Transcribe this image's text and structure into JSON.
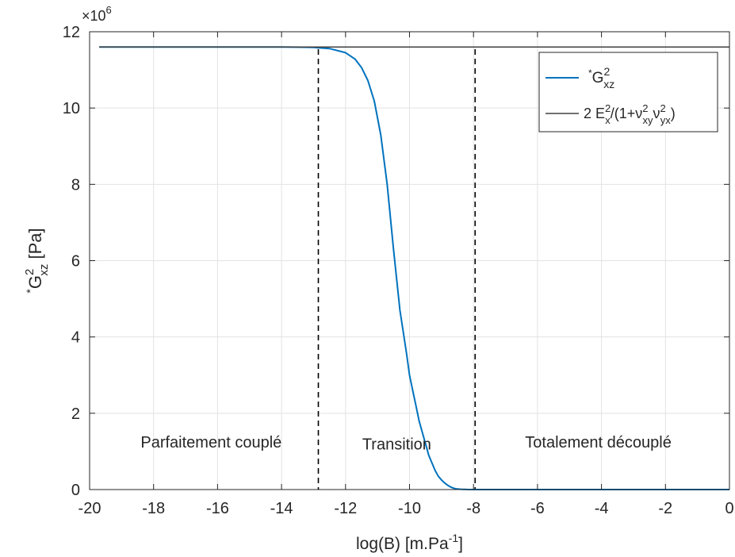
{
  "chart_data": {
    "type": "line",
    "title": "",
    "xlabel": {
      "base": "log(B) [m.Pa",
      "sup": "-1",
      "tail": "]"
    },
    "ylabel": {
      "pre": "*",
      "main": "G",
      "sup": "2",
      "sub": "xz",
      "tail": " [Pa]"
    },
    "exponent_label": {
      "base": "×10",
      "sup": "6"
    },
    "xlim": [
      -20,
      0
    ],
    "ylim": [
      0,
      12000000
    ],
    "xticks": [
      -20,
      -18,
      -16,
      -14,
      -12,
      -10,
      -8,
      -6,
      -4,
      -2,
      0
    ],
    "yticks": [
      0,
      2000000,
      4000000,
      6000000,
      8000000,
      10000000,
      12000000
    ],
    "ytick_labels": [
      "0",
      "2",
      "4",
      "6",
      "8",
      "10",
      "12"
    ],
    "grid": true,
    "legend_position": "top-right",
    "series": [
      {
        "name": "*G2xz",
        "legend": {
          "pre": "*",
          "main": "G",
          "sup": "2",
          "sub": "xz"
        },
        "color": "#0072BD",
        "x": [
          -19.7,
          -14,
          -13,
          -12.5,
          -12,
          -11.7,
          -11.5,
          -11.3,
          -11.1,
          -10.9,
          -10.7,
          -10.5,
          -10.3,
          -10.1,
          -10.0,
          -9.9,
          -9.8,
          -9.7,
          -9.6,
          -9.5,
          -9.4,
          -9.3,
          -9.2,
          -9.1,
          -9.0,
          -8.9,
          -8.8,
          -8.7,
          -8.6,
          -8.5,
          -8.4,
          -8.2,
          -8.0,
          -7.8,
          -7.5,
          -7,
          -4,
          0
        ],
        "y": [
          11600000,
          11600000,
          11590000,
          11560000,
          11450000,
          11280000,
          11060000,
          10720000,
          10180000,
          9300000,
          8000000,
          6300000,
          4700000,
          3600000,
          3000000,
          2600000,
          2200000,
          1800000,
          1500000,
          1200000,
          900000,
          700000,
          500000,
          350000,
          250000,
          170000,
          110000,
          60000,
          30000,
          15000,
          8000,
          2000,
          500,
          0,
          0,
          0,
          0,
          0
        ]
      },
      {
        "name": "2 E2x/(1+ν2xyν2yx)",
        "legend_parts": [
          {
            "t": "2 E"
          },
          {
            "t": "2",
            "role": "sup"
          },
          {
            "t": "x",
            "role": "sub"
          },
          {
            "t": "/(1+ν"
          },
          {
            "t": "2",
            "role": "sup"
          },
          {
            "t": "xy",
            "role": "sub"
          },
          {
            "t": "ν"
          },
          {
            "t": "2",
            "role": "sup"
          },
          {
            "t": "yx",
            "role": "sub"
          },
          {
            "t": ")"
          }
        ],
        "color": "#404040",
        "x": [
          -19.7,
          0
        ],
        "y": [
          11600000,
          11600000
        ]
      }
    ],
    "vlines": [
      {
        "x": -12.85,
        "style": "dashed",
        "color": "#000000"
      },
      {
        "x": -7.95,
        "style": "dashed",
        "color": "#000000"
      }
    ],
    "annotations": [
      {
        "text": "Parfaitement couplé",
        "x": -16.2,
        "y": 1100000
      },
      {
        "text": "Transition",
        "x": -10.4,
        "y": 1050000
      },
      {
        "text": "Totalement découplé",
        "x": -4.1,
        "y": 1100000
      }
    ]
  }
}
